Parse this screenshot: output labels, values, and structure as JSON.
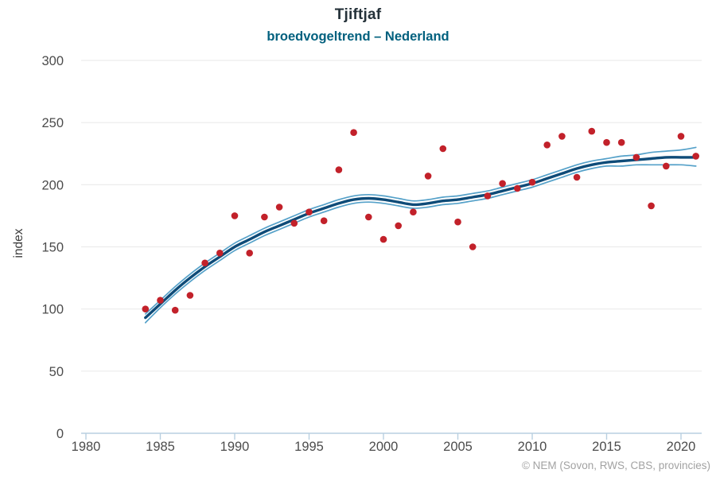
{
  "header": {
    "title": "Tjiftjaf",
    "subtitle": "broedvogeltrend – Nederland"
  },
  "footer": {
    "attribution": "© NEM (Sovon, RWS, CBS, provincies)"
  },
  "colors": {
    "point_red": "#c2212a",
    "trend_navy": "#0e4b78",
    "ci_blue": "#55a1c9",
    "grid_gray": "#ececec",
    "axis_blue": "#b9cfe0",
    "tick_text": "#4c4c4c",
    "axis_title_text": "#3c3c3c",
    "title_text": "#243139",
    "subtitle_teal": "#01607e",
    "attribution_gray": "#a2a2a2"
  },
  "chart_data": {
    "type": "line",
    "title": "Tjiftjaf",
    "subtitle": "broedvogeltrend – Nederland",
    "xlabel": "",
    "ylabel": "index",
    "xlim": [
      1979.7,
      2022.3
    ],
    "ylim": [
      0,
      300
    ],
    "x_ticks": [
      1980,
      1985,
      1990,
      1995,
      2000,
      2005,
      2010,
      2015,
      2020
    ],
    "y_ticks": [
      0,
      50,
      100,
      150,
      200,
      250,
      300
    ],
    "grid": "horizontal-only",
    "legend_position": "none",
    "attribution": "© NEM (Sovon, RWS, CBS, provincies)",
    "x": [
      1984,
      1985,
      1986,
      1987,
      1988,
      1989,
      1990,
      1991,
      1992,
      1993,
      1994,
      1995,
      1996,
      1997,
      1998,
      1999,
      2000,
      2001,
      2002,
      2003,
      2004,
      2005,
      2006,
      2007,
      2008,
      2009,
      2010,
      2011,
      2012,
      2013,
      2014,
      2015,
      2016,
      2017,
      2018,
      2019,
      2020,
      2021
    ],
    "series": [
      {
        "name": "yearly-index-points",
        "type": "scatter",
        "color": "#c2212a",
        "values": [
          100,
          107,
          99,
          111,
          137,
          145,
          175,
          145,
          174,
          182,
          169,
          178,
          171,
          212,
          242,
          174,
          156,
          167,
          178,
          207,
          229,
          170,
          150,
          191,
          201,
          197,
          202,
          232,
          239,
          206,
          243,
          234,
          234,
          222,
          183,
          215,
          239,
          223
        ]
      },
      {
        "name": "trend",
        "type": "line",
        "color": "#0e4b78",
        "values": [
          93,
          104,
          115,
          125,
          134,
          142,
          150,
          156,
          162,
          167,
          172,
          177,
          181,
          185,
          188,
          189,
          188,
          186,
          184,
          185,
          187,
          188,
          190,
          192,
          195,
          198,
          201,
          205,
          209,
          213,
          216,
          218,
          219,
          220,
          221,
          222,
          222,
          222
        ]
      },
      {
        "name": "trend-ci-upper",
        "type": "line",
        "color": "#55a1c9",
        "values": [
          96,
          107,
          118,
          128,
          137,
          145,
          153,
          159,
          165,
          170,
          175,
          180,
          184,
          188,
          191,
          192,
          191,
          189,
          187,
          188,
          190,
          191,
          193,
          195,
          198,
          201,
          204,
          208,
          212,
          216,
          219,
          221,
          223,
          224,
          226,
          227,
          228,
          230
        ]
      },
      {
        "name": "trend-ci-lower",
        "type": "line",
        "color": "#55a1c9",
        "values": [
          89,
          101,
          112,
          122,
          131,
          139,
          147,
          153,
          159,
          164,
          169,
          174,
          178,
          182,
          185,
          186,
          185,
          183,
          181,
          182,
          184,
          185,
          187,
          189,
          192,
          195,
          198,
          202,
          206,
          210,
          213,
          215,
          215,
          216,
          216,
          216,
          216,
          215
        ]
      }
    ]
  }
}
